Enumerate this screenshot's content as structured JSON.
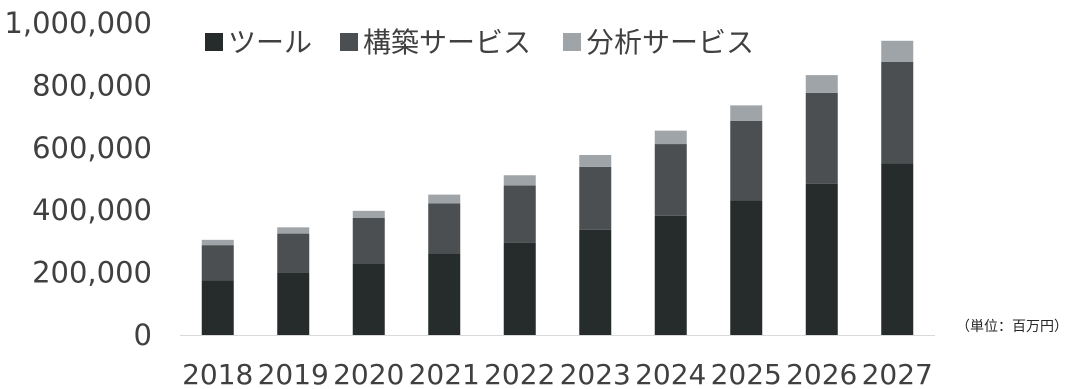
{
  "chart_data": {
    "type": "bar",
    "stacked": true,
    "categories": [
      "2018",
      "2019",
      "2020",
      "2021",
      "2022",
      "2023",
      "2024",
      "2025",
      "2026",
      "2027"
    ],
    "series": [
      {
        "name": "ツール",
        "color": "#262b2b",
        "values": [
          175000,
          200000,
          230000,
          262000,
          296000,
          337000,
          382000,
          432000,
          485000,
          550000
        ]
      },
      {
        "name": "構築サービス",
        "color": "#4b4f51",
        "values": [
          113000,
          125000,
          145000,
          160000,
          183000,
          202000,
          230000,
          254000,
          291000,
          325000
        ]
      },
      {
        "name": "分析サービス",
        "color": "#9ea4a7",
        "values": [
          17000,
          20000,
          23000,
          28000,
          33000,
          38000,
          43000,
          50000,
          57000,
          68000
        ]
      }
    ],
    "ylim": [
      0,
      1000000
    ],
    "yticks": [
      0,
      200000,
      400000,
      600000,
      800000,
      1000000
    ],
    "ytick_labels": [
      "0",
      "200,000",
      "400,000",
      "600,000",
      "800,000",
      "1,000,000"
    ],
    "grid": false,
    "legend_position": "top",
    "unit_note": "（単位：百万円）"
  }
}
